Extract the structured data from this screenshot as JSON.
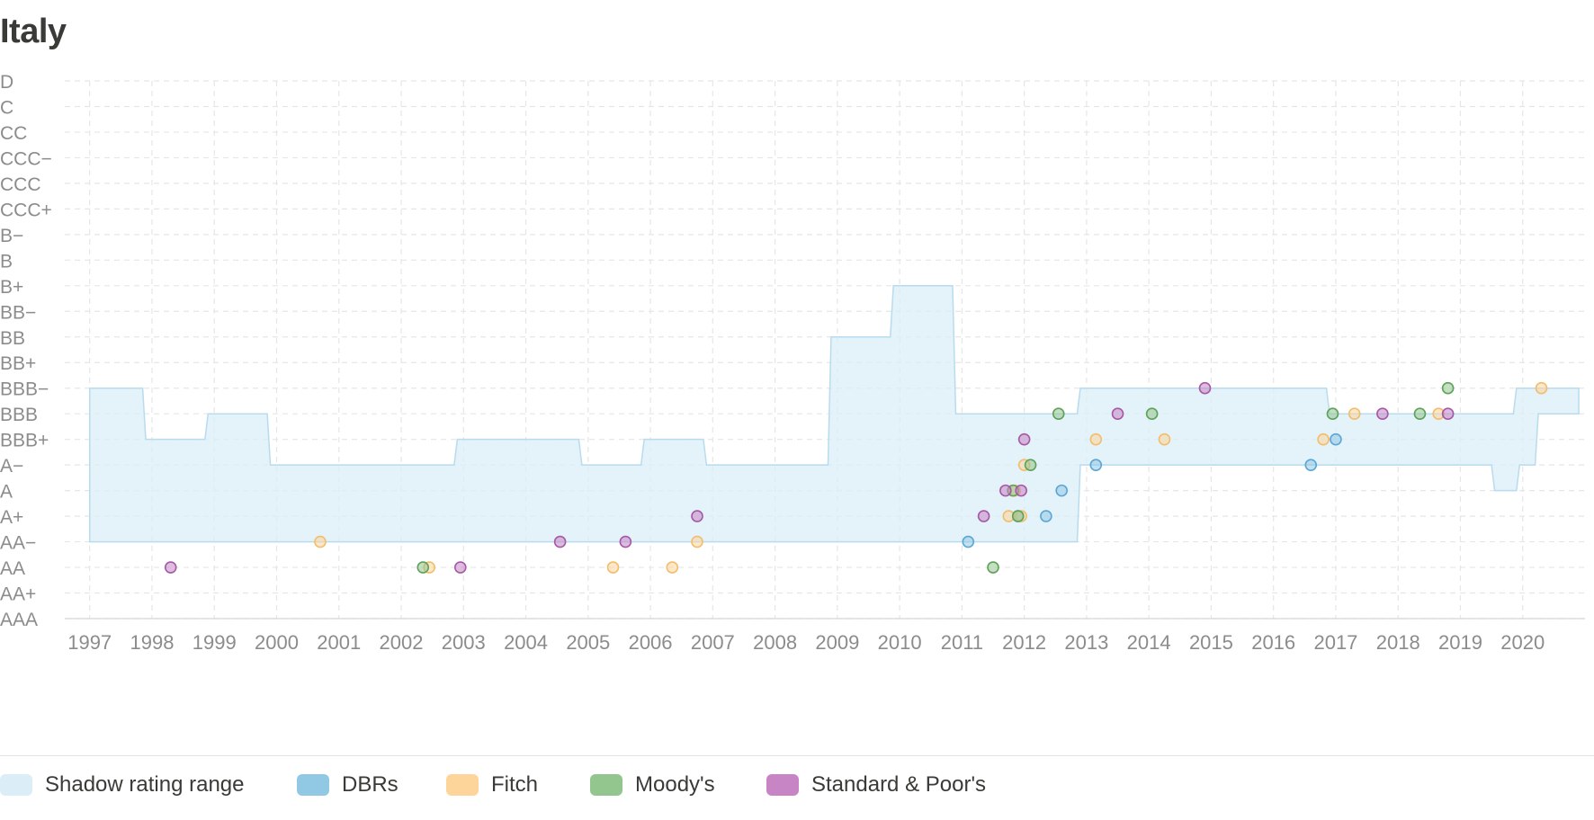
{
  "page": {
    "title": "Italy"
  },
  "chart_data": {
    "type": "scatter",
    "title": "Italy",
    "y_categories": [
      "D",
      "C",
      "CC",
      "CCC−",
      "CCC",
      "CCC+",
      "B−",
      "B",
      "B+",
      "BB−",
      "BB",
      "BB+",
      "BBB−",
      "BBB",
      "BBB+",
      "A−",
      "A",
      "A+",
      "AA−",
      "AA",
      "AA+",
      "AAA"
    ],
    "x_ticks": [
      "1997",
      "1998",
      "1999",
      "2000",
      "2001",
      "2002",
      "2003",
      "2004",
      "2005",
      "2006",
      "2007",
      "2008",
      "2009",
      "2010",
      "2011",
      "2012",
      "2013",
      "2014",
      "2015",
      "2016",
      "2017",
      "2018",
      "2019",
      "2020"
    ],
    "xlim": [
      1996.6,
      2021.0
    ],
    "grid": true,
    "legend_position": "bottom",
    "shadow_range": {
      "name": "Shadow rating range",
      "color": "#dbeef7",
      "upper": [
        [
          "1997.0",
          "BBB−"
        ],
        [
          "1997.85",
          "BBB−"
        ],
        [
          "1997.9",
          "BBB+"
        ],
        [
          "1998.85",
          "BBB+"
        ],
        [
          "1998.9",
          "BBB"
        ],
        [
          "1999.85",
          "BBB"
        ],
        [
          "1999.9",
          "A−"
        ],
        [
          "2002.85",
          "A−"
        ],
        [
          "2002.9",
          "BBB+"
        ],
        [
          "2004.85",
          "BBB+"
        ],
        [
          "2004.9",
          "A−"
        ],
        [
          "2005.85",
          "A−"
        ],
        [
          "2005.9",
          "BBB+"
        ],
        [
          "2006.85",
          "BBB+"
        ],
        [
          "2006.9",
          "A−"
        ],
        [
          "2008.85",
          "A−"
        ],
        [
          "2008.9",
          "BB"
        ],
        [
          "2009.85",
          "BB"
        ],
        [
          "2009.9",
          "B+"
        ],
        [
          "2010.85",
          "B+"
        ],
        [
          "2010.9",
          "BBB"
        ],
        [
          "2012.85",
          "BBB"
        ],
        [
          "2012.9",
          "BBB−"
        ],
        [
          "2013.85",
          "BBB−"
        ],
        [
          "2013.9",
          "BBB−"
        ],
        [
          "2015.85",
          "BBB−"
        ],
        [
          "2015.9",
          "BBB−"
        ],
        [
          "2016.85",
          "BBB−"
        ],
        [
          "2016.9",
          "BBB"
        ],
        [
          "2019.85",
          "BBB"
        ],
        [
          "2019.9",
          "BBB−"
        ],
        [
          "2020.9",
          "BBB−"
        ]
      ],
      "lower": [
        [
          "1997.0",
          "AA−"
        ],
        [
          "2012.85",
          "AA−"
        ],
        [
          "2012.9",
          "A−"
        ],
        [
          "2019.5",
          "A−"
        ],
        [
          "2019.55",
          "A"
        ],
        [
          "2019.9",
          "A"
        ],
        [
          "2019.95",
          "A−"
        ],
        [
          "2020.2",
          "A−"
        ],
        [
          "2020.25",
          "BBB"
        ],
        [
          "2020.9",
          "BBB"
        ]
      ]
    },
    "series": [
      {
        "name": "DBRs",
        "color": "#91c8e4",
        "points": [
          [
            "2011.1",
            "AA−"
          ],
          [
            "2011.9",
            "A+"
          ],
          [
            "2012.35",
            "A+"
          ],
          [
            "2012.6",
            "A"
          ],
          [
            "2013.15",
            "A−"
          ],
          [
            "2016.6",
            "A−"
          ],
          [
            "2017.0",
            "BBB+"
          ]
        ]
      },
      {
        "name": "Fitch",
        "color": "#fdd59a",
        "points": [
          [
            "2000.7",
            "AA−"
          ],
          [
            "2002.45",
            "AA"
          ],
          [
            "2005.4",
            "AA"
          ],
          [
            "2006.35",
            "AA"
          ],
          [
            "2006.75",
            "AA−"
          ],
          [
            "2011.75",
            "A+"
          ],
          [
            "2011.95",
            "A+"
          ],
          [
            "2011.85",
            "A"
          ],
          [
            "2012.0",
            "A−"
          ],
          [
            "2013.15",
            "BBB+"
          ],
          [
            "2014.25",
            "BBB+"
          ],
          [
            "2016.8",
            "BBB+"
          ],
          [
            "2017.3",
            "BBB"
          ],
          [
            "2018.65",
            "BBB"
          ],
          [
            "2020.3",
            "BBB−"
          ]
        ]
      },
      {
        "name": "Moody's",
        "color": "#93c58e",
        "points": [
          [
            "2002.35",
            "AA"
          ],
          [
            "2011.5",
            "AA"
          ],
          [
            "2011.9",
            "A+"
          ],
          [
            "2011.82",
            "A"
          ],
          [
            "2012.1",
            "A−"
          ],
          [
            "2012.55",
            "BBB"
          ],
          [
            "2014.05",
            "BBB"
          ],
          [
            "2016.95",
            "BBB"
          ],
          [
            "2018.35",
            "BBB"
          ],
          [
            "2018.8",
            "BBB−"
          ]
        ]
      },
      {
        "name": "Standard & Poor's",
        "color": "#c785c6",
        "points": [
          [
            "1998.3",
            "AA"
          ],
          [
            "2002.95",
            "AA"
          ],
          [
            "2004.55",
            "AA−"
          ],
          [
            "2005.6",
            "AA−"
          ],
          [
            "2006.75",
            "A+"
          ],
          [
            "2011.35",
            "A+"
          ],
          [
            "2011.7",
            "A"
          ],
          [
            "2011.95",
            "A"
          ],
          [
            "2012.0",
            "BBB+"
          ],
          [
            "2013.5",
            "BBB"
          ],
          [
            "2014.9",
            "BBB−"
          ],
          [
            "2017.75",
            "BBB"
          ],
          [
            "2018.8",
            "BBB"
          ]
        ]
      }
    ],
    "legend": [
      {
        "label": "Shadow rating range",
        "color": "#dbeef7"
      },
      {
        "label": "DBRs",
        "color": "#91c8e4"
      },
      {
        "label": "Fitch",
        "color": "#fdd59a"
      },
      {
        "label": "Moody's",
        "color": "#93c58e"
      },
      {
        "label": "Standard & Poor's",
        "color": "#c785c6"
      }
    ]
  }
}
